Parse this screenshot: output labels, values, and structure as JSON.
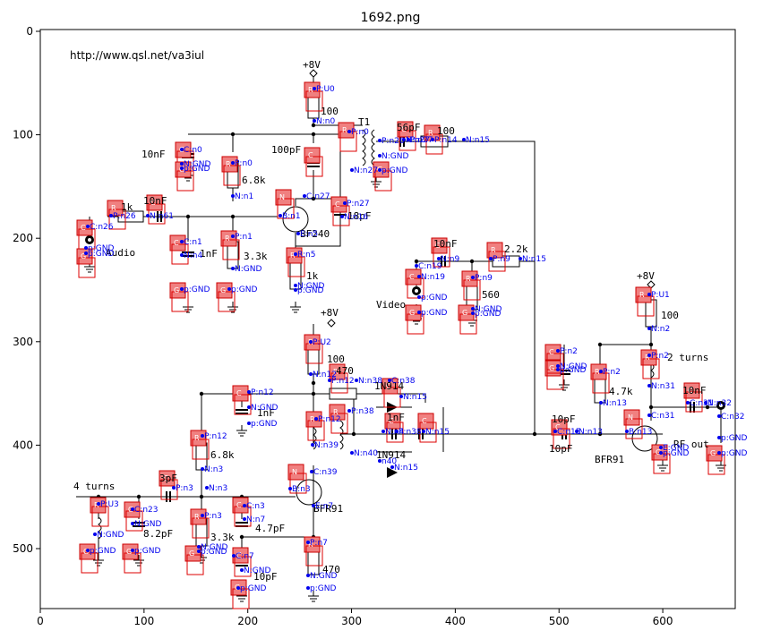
{
  "title": "1692.png",
  "source_url": "http://www.qsl.net/va3iul",
  "x_ticks": [
    "0",
    "100",
    "200",
    "300",
    "400",
    "500",
    "600"
  ],
  "y_ticks": [
    "0",
    "100",
    "200",
    "300",
    "400",
    "500"
  ],
  "values": {
    "p8v_top": "+8V",
    "r100_top": "100",
    "t1": "T1",
    "c56pf": "56pF",
    "r100_b": "100",
    "c10nf_a": "10nF",
    "c100pf": "100pF",
    "r68k_a": "6.8k",
    "r1k_in": "1k",
    "c10nf_b": "10nF",
    "tr_bf": "BF240",
    "c18pf": "18pF",
    "audio": "Audio",
    "c1nf_a": "1nF",
    "r33k_a": "3.3k",
    "r1k_b": "1k",
    "c10nf_c": "10nF",
    "r22k": "2.2k",
    "r560": "560",
    "video": "Video",
    "p8v_mid": "+8V",
    "r100_mid": "100",
    "r470_a": "470",
    "d_top": "1N914",
    "c1nf_b": "1nF",
    "c1nf_c": "1nF",
    "d_bot": "1N914",
    "r68k_b": "6.8k",
    "turns4": "4 turns",
    "c3pf": "3pF",
    "c82pf": "8.2pF",
    "tr_bfr_a": "BFR91",
    "c47pf": "4.7pF",
    "r33k_b": "3.3k",
    "c10pf_a": "10pF",
    "r470_b": "470",
    "p8v_right": "+8V",
    "r100_right": "100",
    "turns2": "2 turns",
    "r47k": "4.7k",
    "c10pf_b": "10pF",
    "c10nf_d": "10nF",
    "tr_bfr_b": "BFR91",
    "rf_out": "RF out",
    "c10pf_c": "10pF"
  },
  "labels": {
    "L1": "R",
    "L2": "R",
    "L3": "C",
    "L4": "C",
    "L5": "G",
    "L6": "R",
    "L7": "R",
    "L8": "N",
    "L9": "C",
    "L10": "R",
    "L11": "C",
    "L12": "C",
    "L13": "G",
    "L14": "C",
    "L15": "R",
    "L16": "R",
    "L17": "G",
    "L18": "G",
    "L19": "C",
    "L20": "G",
    "L21": "C",
    "L22": "R",
    "L23": "C",
    "L24": "R",
    "L25": "G",
    "L26": "G",
    "L27": "R",
    "L28": "R",
    "L29": "C",
    "L30": "C",
    "L31": "R",
    "L32": "R",
    "L33": "C",
    "L34": "C",
    "L35": "R",
    "L36": "N",
    "L37": "C",
    "L38": "R",
    "L39": "C",
    "L40": "G",
    "L41": "G",
    "L42": "C",
    "L43": "R",
    "L44": "G",
    "L45": "G",
    "L46": "R",
    "L47": "C",
    "L48": "R",
    "L49": "R",
    "L50": "G",
    "L51": "C",
    "L52": "R",
    "L53": "N",
    "L54": "G",
    "L55": "C",
    "L56": "C",
    "L57": "G"
  },
  "pins": {
    "a1": "P:U0",
    "a2": "N:n0",
    "a3": "P:n0",
    "a4": "N:n27",
    "a5": "P:n26",
    "a6": "N:GND",
    "a7": "p:GND",
    "a8": "P:n27",
    "a9": "N:n27",
    "a10": "P:n14",
    "a11": "N:n15",
    "a12": "C:n0",
    "a13": "N:GND",
    "a14": "p:GND",
    "a15": "P:n0",
    "a16": "N:n1",
    "a17": "C:n27",
    "a18": "B:n1",
    "a19": "E:n5",
    "a20": "P:n27",
    "a21": "N:n16",
    "a22": "P:n26",
    "a23": "N:n61",
    "a24": "C:n26",
    "a25": "p:GND",
    "a26": "p:GND",
    "a27": "C:n1",
    "a28": "N:n4",
    "a29": "P:n1",
    "a30": "N:GND",
    "a31": "R:n5",
    "a32": "N:GND",
    "a33": "p:GND",
    "a34": "p:GND",
    "a35": "p:GND",
    "a36": "N:n9",
    "a37": "N:n19",
    "a38": "P:n9",
    "a39": "N:n15",
    "a40": "C:n19",
    "a41": "p:GND",
    "a42": "P:n9",
    "a43": "N:GND",
    "a44": "p:GND",
    "a45": "p:GND",
    "a46": "P:U2",
    "a47": "N:n12",
    "a48": "P:n12",
    "a49": "N:n38",
    "a50": "C:n38",
    "a51": "N:n15",
    "a52": "P:n12",
    "a53": "N:GND",
    "a54": "p:GND",
    "a55": "P:n12",
    "a56": "N:n39",
    "a57": "P:n38",
    "a58": "N:n40",
    "a59": "N:n4",
    "a60": "P:n38",
    "a61": "N:n15",
    "a62": "n40",
    "a63": "N:n15",
    "a64": "C:n39",
    "a65": "B:n3",
    "a66": "E:n7",
    "a67": "P:n12",
    "a68": "N:n3",
    "a69": "P:n3",
    "a70": "N:n3",
    "a71": "P:U3",
    "a72": "N:GND",
    "a73": "p:GND",
    "a74": "C:n23",
    "a75": "N:GND",
    "a76": "p:GND",
    "a77": "C:n3",
    "a78": "N:n7",
    "a79": "P:n3",
    "a80": "N:GND",
    "a81": "p:GND",
    "a82": "P:n7",
    "a83": "N:GND",
    "a84": "p:GND",
    "a85": "C:n7",
    "a86": "N:GND",
    "a87": "p:GND",
    "a88": "P:U1",
    "a89": "N:n2",
    "a90": "P:n2",
    "a91": "N:GND",
    "a92": "p:GND",
    "a93": "P:n2",
    "a94": "N:n31",
    "a95": "P:n2",
    "a96": "N:n13",
    "a97": "C:n31",
    "a98": "B:n13",
    "a99": "E:GND",
    "a100": "p:GND",
    "a101": "C:n15",
    "a102": "N:n13",
    "a103": "C:n31",
    "a104": "N:n32",
    "a105": "C:n32",
    "a106": "p:GND",
    "a107": "p:GND"
  }
}
